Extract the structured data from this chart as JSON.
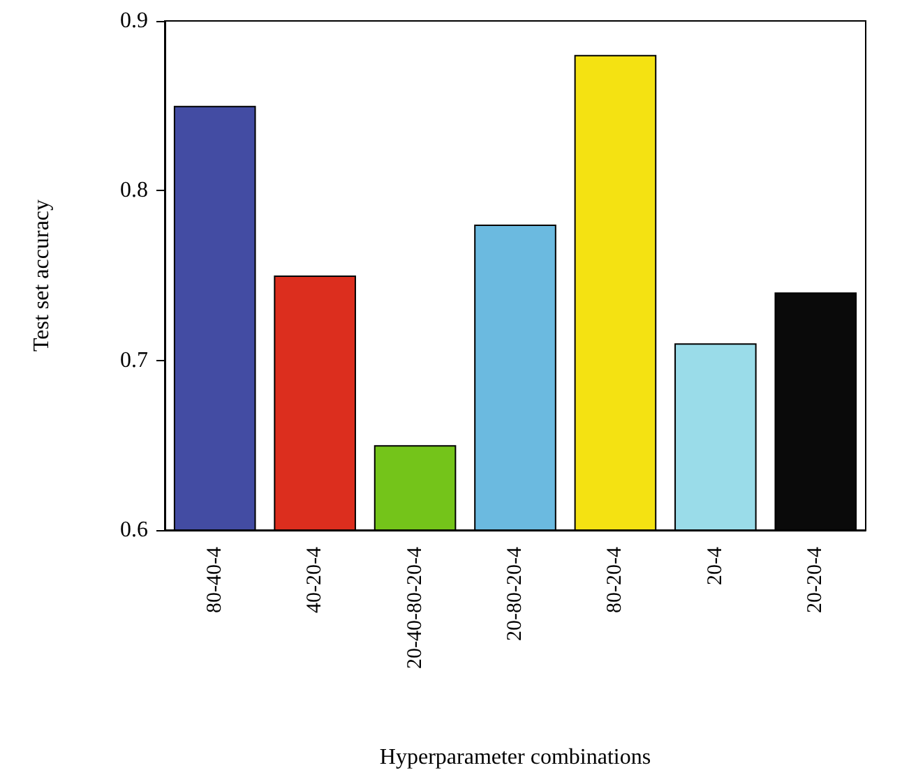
{
  "chart_data": {
    "type": "bar",
    "xlabel": "Hyperparameter combinations",
    "ylabel": "Test set accuracy",
    "categories": [
      "80-40-4",
      "40-20-4",
      "20-40-80-20-4",
      "20-80-20-4",
      "80-20-4",
      "20-4",
      "20-20-4"
    ],
    "values": [
      0.85,
      0.75,
      0.65,
      0.78,
      0.88,
      0.71,
      0.74
    ],
    "colors": [
      "#434ca3",
      "#dc2e1e",
      "#74c41a",
      "#6bbae0",
      "#f4e212",
      "#9adce9",
      "#0a0a0a"
    ],
    "ylim": [
      0.6,
      0.9
    ],
    "yticks": [
      0.6,
      0.7,
      0.8,
      0.9
    ],
    "grid": false
  }
}
